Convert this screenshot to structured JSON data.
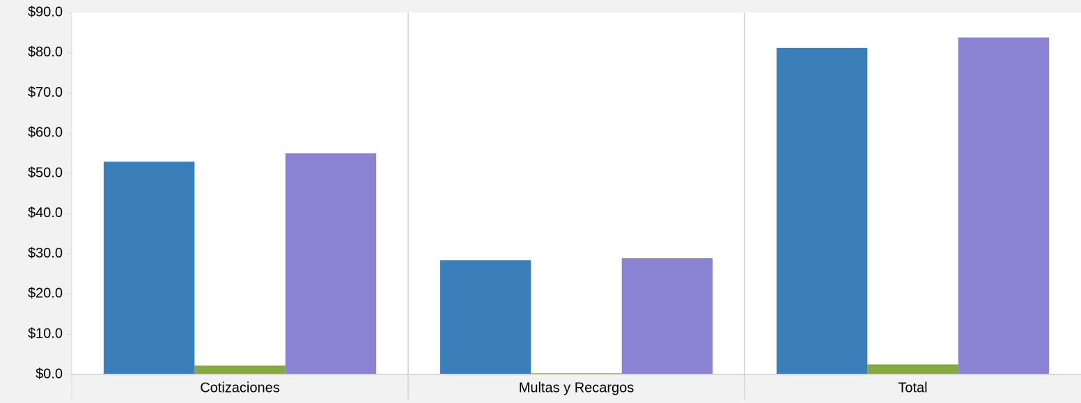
{
  "chart_data": {
    "type": "bar",
    "categories": [
      "Cotizaciones",
      "Multas y Recargos",
      "Total"
    ],
    "series": [
      {
        "color": "#3a7fba",
        "values": [
          52.9,
          28.4,
          81.2
        ]
      },
      {
        "color": "#86a843",
        "values": [
          2.2,
          0.3,
          2.5
        ]
      },
      {
        "color": "#8a82d2",
        "values": [
          55.0,
          28.9,
          83.8
        ]
      }
    ],
    "ylim": [
      0,
      90
    ],
    "yticks": [
      {
        "value": 0,
        "label": "$0.0"
      },
      {
        "value": 10,
        "label": "$10.0"
      },
      {
        "value": 20,
        "label": "$20.0"
      },
      {
        "value": 30,
        "label": "$30.0"
      },
      {
        "value": 40,
        "label": "$40.0"
      },
      {
        "value": 50,
        "label": "$50.0"
      },
      {
        "value": 60,
        "label": "$60.0"
      },
      {
        "value": 70,
        "label": "$70.0"
      },
      {
        "value": 80,
        "label": "$80.0"
      },
      {
        "value": 90,
        "label": "$90.0"
      }
    ],
    "grid": false
  }
}
